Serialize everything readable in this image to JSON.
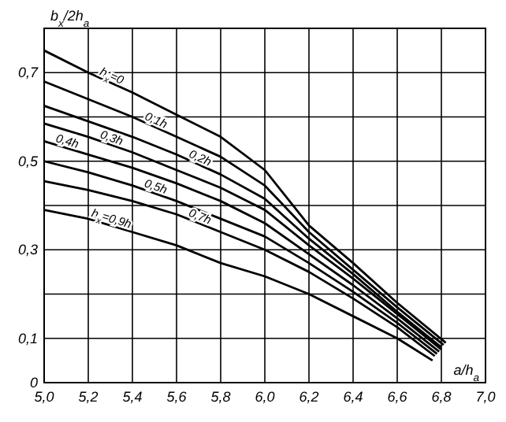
{
  "chart_data": {
    "type": "line",
    "xlabel": "a/h$_{a}$",
    "ylabel": "b$_{x}$/2h$_{a}$",
    "xlim": [
      5,
      7
    ],
    "ylim": [
      0,
      0.8
    ],
    "xticks": [
      {
        "value": 5,
        "label": "5,0"
      },
      {
        "value": 5.2,
        "label": "5,2"
      },
      {
        "value": 5.4,
        "label": "5,4"
      },
      {
        "value": 5.6,
        "label": "5,6"
      },
      {
        "value": 5.8,
        "label": "5,8"
      },
      {
        "value": 6,
        "label": "6,0"
      },
      {
        "value": 6.2,
        "label": "6,2"
      },
      {
        "value": 6.4,
        "label": "6,4"
      },
      {
        "value": 6.6,
        "label": "6,6"
      },
      {
        "value": 6.8,
        "label": "6,8"
      },
      {
        "value": 7,
        "label": "7,0"
      }
    ],
    "yticks": [
      0,
      {
        "value": 0.1,
        "label": "0,1"
      },
      {
        "value": 0.2,
        "label": null
      },
      {
        "value": 0.3,
        "label": "0,3"
      },
      {
        "value": 0.4,
        "label": null
      },
      {
        "value": 0.5,
        "label": "0,5"
      },
      {
        "value": 0.6,
        "label": null
      },
      {
        "value": 0.7,
        "label": "0,7"
      },
      {
        "value": 0.8,
        "label": null
      }
    ],
    "grid": true,
    "marker": "none",
    "line_style": "solid",
    "series": [
      {
        "name": "h$_{x}$=0",
        "color": "#000000",
        "x": [
          5,
          5.2,
          5.4,
          5.6,
          5.8,
          6,
          6.2,
          6.4,
          6.6,
          6.82
        ],
        "values": [
          0.75,
          0.7,
          0.655,
          0.605,
          0.555,
          0.48,
          0.355,
          0.27,
          0.18,
          0.09
        ]
      },
      {
        "name": "0,1h",
        "color": "#000000",
        "x": [
          5,
          5.2,
          5.4,
          5.6,
          5.8,
          6,
          6.2,
          6.4,
          6.6,
          6.81
        ],
        "values": [
          0.68,
          0.64,
          0.6,
          0.555,
          0.51,
          0.445,
          0.34,
          0.255,
          0.17,
          0.085
        ]
      },
      {
        "name": "0,2h",
        "color": "#000000",
        "x": [
          5,
          5.2,
          5.4,
          5.6,
          5.8,
          6,
          6.2,
          6.4,
          6.6,
          6.8
        ],
        "values": [
          0.625,
          0.59,
          0.555,
          0.515,
          0.47,
          0.415,
          0.325,
          0.245,
          0.16,
          0.08
        ]
      },
      {
        "name": "0,3h",
        "color": "#000000",
        "x": [
          5,
          5.2,
          5.4,
          5.6,
          5.8,
          6,
          6.2,
          6.4,
          6.6,
          6.8
        ],
        "values": [
          0.585,
          0.555,
          0.52,
          0.48,
          0.44,
          0.39,
          0.31,
          0.235,
          0.155,
          0.075
        ]
      },
      {
        "name": "0,4h",
        "color": "#000000",
        "x": [
          5,
          5.2,
          5.4,
          5.6,
          5.8,
          6,
          6.2,
          6.4,
          6.6,
          6.79
        ],
        "values": [
          0.545,
          0.515,
          0.485,
          0.45,
          0.41,
          0.36,
          0.29,
          0.22,
          0.145,
          0.07
        ]
      },
      {
        "name": "0,5h",
        "color": "#000000",
        "x": [
          5,
          5.2,
          5.4,
          5.6,
          5.8,
          6,
          6.2,
          6.4,
          6.6,
          6.78
        ],
        "values": [
          0.5,
          0.475,
          0.445,
          0.41,
          0.37,
          0.33,
          0.27,
          0.205,
          0.135,
          0.065
        ]
      },
      {
        "name": "0,7h",
        "color": "#000000",
        "x": [
          5,
          5.2,
          5.4,
          5.6,
          5.8,
          6,
          6.2,
          6.4,
          6.6,
          6.77
        ],
        "values": [
          0.455,
          0.435,
          0.41,
          0.38,
          0.34,
          0.3,
          0.25,
          0.19,
          0.125,
          0.06
        ]
      },
      {
        "name": "h$_{x}$=0,9h",
        "color": "#000000",
        "x": [
          5,
          5.2,
          5.4,
          5.6,
          5.8,
          6,
          6.2,
          6.4,
          6.6,
          6.76
        ],
        "values": [
          0.39,
          0.37,
          0.34,
          0.31,
          0.27,
          0.24,
          0.2,
          0.15,
          0.1,
          0.05
        ]
      }
    ]
  }
}
